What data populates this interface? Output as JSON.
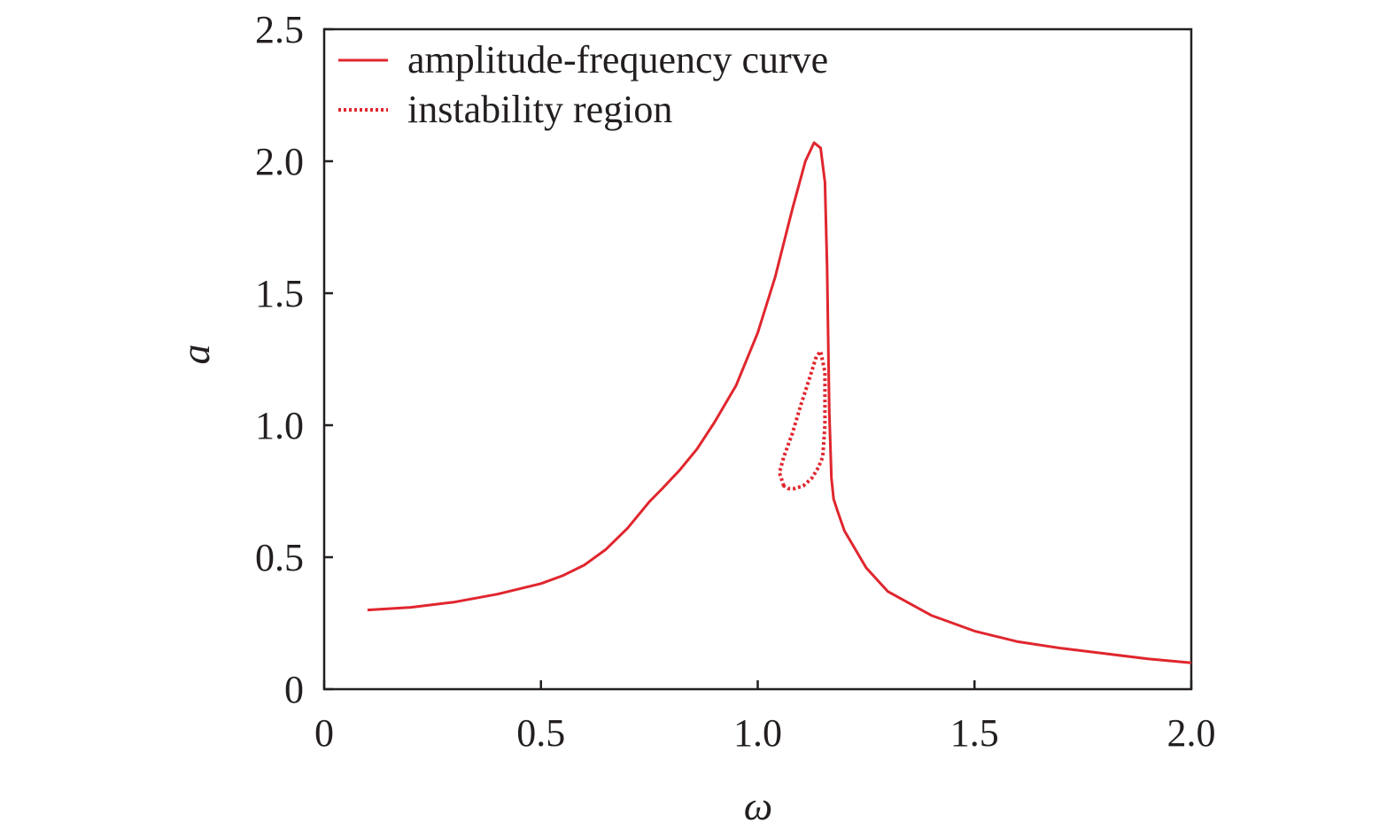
{
  "chart_data": {
    "type": "line",
    "title": "",
    "xlabel": "ω",
    "ylabel": "a",
    "xlim": [
      0,
      2.0
    ],
    "ylim": [
      0,
      2.5
    ],
    "xticks": [
      0,
      0.5,
      1.0,
      1.5,
      2.0
    ],
    "xtick_labels": [
      "0",
      "0.5",
      "1.0",
      "1.5",
      "2.0"
    ],
    "yticks": [
      0,
      0.5,
      1.0,
      1.5,
      2.0,
      2.5
    ],
    "ytick_labels": [
      "0",
      "0.5",
      "1.0",
      "1.5",
      "2.0",
      "2.5"
    ],
    "grid": false,
    "legend_position": "top-left",
    "series": [
      {
        "name": "amplitude-frequency curve",
        "style": "solid",
        "color": "#e0262e",
        "x": [
          0.1,
          0.2,
          0.3,
          0.4,
          0.5,
          0.55,
          0.6,
          0.65,
          0.7,
          0.75,
          0.78,
          0.82,
          0.86,
          0.9,
          0.95,
          1.0,
          1.04,
          1.08,
          1.11,
          1.13,
          1.145,
          1.155,
          1.16,
          1.165,
          1.17,
          1.175,
          1.185,
          1.2,
          1.25,
          1.3,
          1.4,
          1.5,
          1.6,
          1.7,
          1.8,
          1.9,
          2.0
        ],
        "y": [
          0.3,
          0.31,
          0.33,
          0.36,
          0.4,
          0.43,
          0.47,
          0.53,
          0.61,
          0.71,
          0.76,
          0.83,
          0.91,
          1.01,
          1.15,
          1.35,
          1.56,
          1.82,
          2.0,
          2.07,
          2.05,
          1.92,
          1.6,
          1.05,
          0.8,
          0.72,
          0.67,
          0.6,
          0.46,
          0.37,
          0.28,
          0.22,
          0.18,
          0.155,
          0.135,
          0.115,
          0.1
        ]
      },
      {
        "name": "instability region",
        "style": "dotted",
        "color": "#e0262e",
        "closed": true,
        "x": [
          1.06,
          1.05,
          1.06,
          1.08,
          1.1,
          1.12,
          1.135,
          1.145,
          1.155,
          1.155,
          1.15,
          1.14,
          1.125,
          1.105,
          1.085,
          1.07,
          1.06
        ],
        "y": [
          0.77,
          0.82,
          0.88,
          0.97,
          1.08,
          1.18,
          1.26,
          1.28,
          1.2,
          1.0,
          0.88,
          0.84,
          0.8,
          0.77,
          0.76,
          0.76,
          0.77
        ]
      }
    ]
  }
}
